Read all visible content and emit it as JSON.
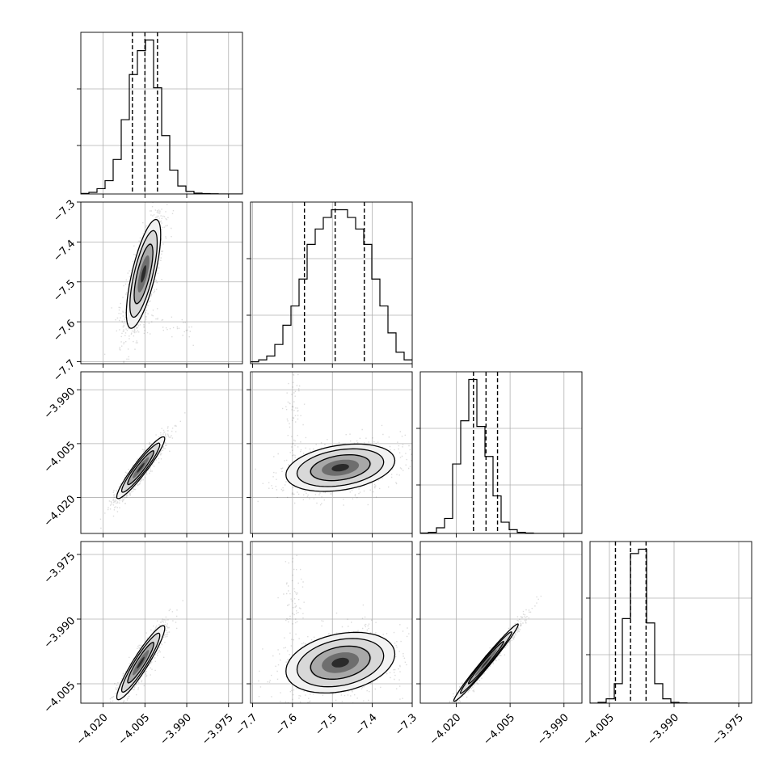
{
  "chart_data": {
    "type": "corner",
    "grid": true,
    "variables": [
      {
        "range": [
          -4.028,
          -3.97
        ],
        "ticks": [
          -4.02,
          -4.005,
          -3.99,
          -3.975
        ],
        "tick_labels": [
          "−4.020",
          "−4.005",
          "−3.990",
          "−3.975"
        ],
        "marginal": {
          "counts": [
            0.2,
            0.6,
            2,
            5,
            13,
            28,
            45,
            54,
            58,
            40,
            22,
            9,
            3,
            1,
            0.3,
            0.15,
            0.1,
            0,
            0,
            0
          ],
          "quantiles": [
            -4.0095,
            -4.005,
            -4.0005
          ]
        }
      },
      {
        "range": [
          -7.705,
          -7.3
        ],
        "ticks": [
          -7.7,
          -7.6,
          -7.5,
          -7.4,
          -7.3
        ],
        "tick_labels": [
          "−7.7",
          "−7.6",
          "−7.5",
          "−7.4",
          "−7.3"
        ],
        "marginal": {
          "counts": [
            0.5,
            1,
            2,
            5,
            10,
            15,
            22,
            31,
            35,
            38,
            40,
            40,
            38,
            35,
            31,
            22,
            15,
            8,
            3,
            1
          ],
          "quantiles": [
            -7.57,
            -7.493,
            -7.42
          ]
        }
      },
      {
        "range": [
          -4.03,
          -3.985
        ],
        "ticks": [
          -4.02,
          -4.005,
          -3.99
        ],
        "tick_labels": [
          "−4.020",
          "−4.005",
          "−3.990"
        ],
        "marginal": {
          "counts": [
            0.2,
            0.6,
            3,
            8,
            37,
            60,
            82,
            57,
            41,
            20,
            6,
            2,
            0.6,
            0.2,
            0,
            0,
            0,
            0,
            0,
            0
          ],
          "quantiles": [
            -4.0152,
            -4.0117,
            -4.0085
          ]
        }
      },
      {
        "range": [
          -4.0095,
          -3.972
        ],
        "ticks": [
          -4.005,
          -3.99,
          -3.975
        ],
        "tick_labels": [
          "−4.005",
          "−3.990",
          "−3.975"
        ],
        "marginal": {
          "counts": [
            0,
            0.4,
            2,
            9,
            39,
            69,
            71,
            37,
            9,
            2,
            0.4,
            0.1,
            0,
            0,
            0,
            0,
            0,
            0,
            0,
            0
          ],
          "quantiles": [
            -4.0036,
            -4.0001,
            -3.9965
          ]
        }
      }
    ],
    "pairs": [
      {
        "row": 1,
        "col": 0,
        "mean": [
          -4.0055,
          -7.48
        ],
        "sd": [
          0.0028,
          0.062
        ],
        "corr": 0.72,
        "sd_scale": 1.0,
        "outliers": [
          [
            -4.008,
            -7.59,
            0.004,
            0.02,
            70
          ],
          [
            -3.995,
            -7.62,
            0.005,
            0.02,
            30
          ]
        ]
      },
      {
        "row": 2,
        "col": 0,
        "mean": [
          -4.0065,
          -4.0117
        ],
        "sd": [
          0.0034,
          0.0034
        ],
        "corr": 0.94,
        "sd_scale": 1.15,
        "outliers": []
      },
      {
        "row": 2,
        "col": 1,
        "mean": [
          -7.48,
          -4.0117
        ],
        "sd": [
          0.062,
          0.003
        ],
        "corr": 0.3,
        "sd_scale": 1.0,
        "outliers": [
          [
            -7.6,
            -3.995,
            0.012,
            0.006,
            70
          ]
        ]
      },
      {
        "row": 3,
        "col": 0,
        "mean": [
          -4.0065,
          -4.0001
        ],
        "sd": [
          0.0034,
          0.0034
        ],
        "corr": 0.93,
        "sd_scale": 1.15,
        "outliers": []
      },
      {
        "row": 3,
        "col": 1,
        "mean": [
          -7.48,
          -4.0001
        ],
        "sd": [
          0.062,
          0.0032
        ],
        "corr": 0.28,
        "sd_scale": 1.0,
        "outliers": [
          [
            -7.6,
            -3.985,
            0.012,
            0.006,
            70
          ]
        ]
      },
      {
        "row": 3,
        "col": 2,
        "mean": [
          -4.0117,
          -4.0001
        ],
        "sd": [
          0.0034,
          0.0034
        ],
        "corr": 0.985,
        "sd_scale": 1.2,
        "outliers": []
      }
    ]
  }
}
